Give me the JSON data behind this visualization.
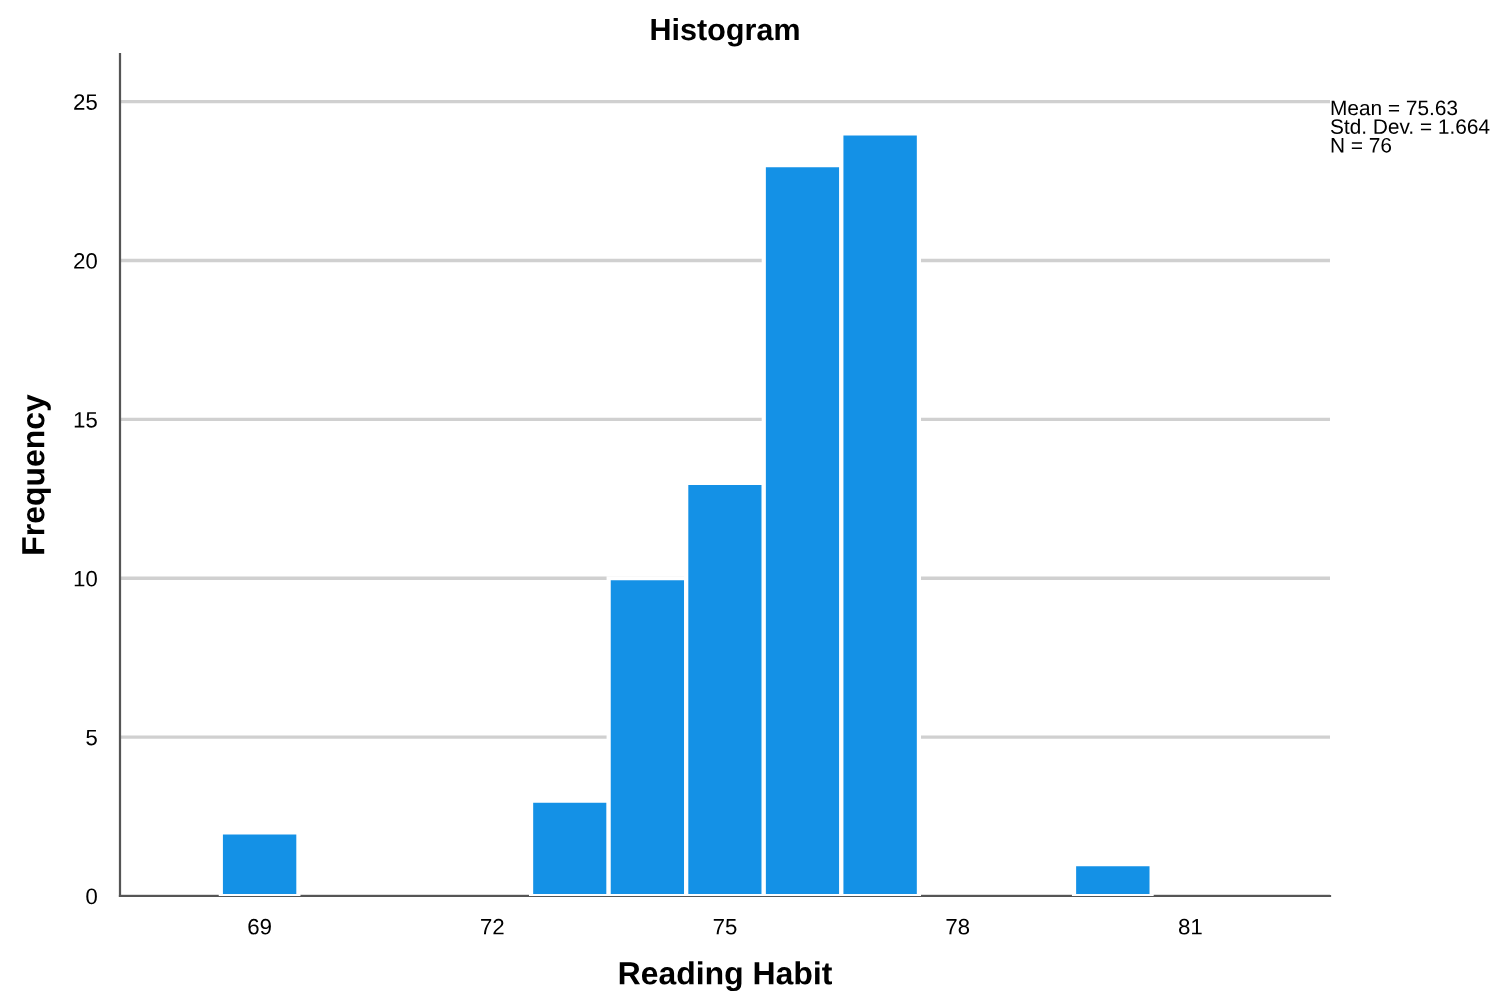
{
  "chart_data": {
    "type": "histogram",
    "title": "Histogram",
    "xlabel": "Reading Habit",
    "ylabel": "Frequency",
    "bins": [
      68.5,
      69.5,
      70.5,
      71.5,
      72.5,
      73.5,
      74.5,
      75.5,
      76.5,
      77.5,
      78.5,
      79.5,
      80.5
    ],
    "values": [
      2,
      0,
      0,
      0,
      3,
      10,
      13,
      23,
      24,
      0,
      0,
      1
    ],
    "color": "#1491e6",
    "xlim": [
      67.2,
      82.8
    ],
    "xticks": [
      69,
      72,
      75,
      78,
      81
    ],
    "ylim": [
      0,
      26.5
    ],
    "yticks": [
      0,
      5,
      10,
      15,
      20,
      25
    ],
    "grid": "y",
    "annotations": [
      "Mean = 75.63\nStd. Dev. = 1.664\nN = 76"
    ]
  }
}
